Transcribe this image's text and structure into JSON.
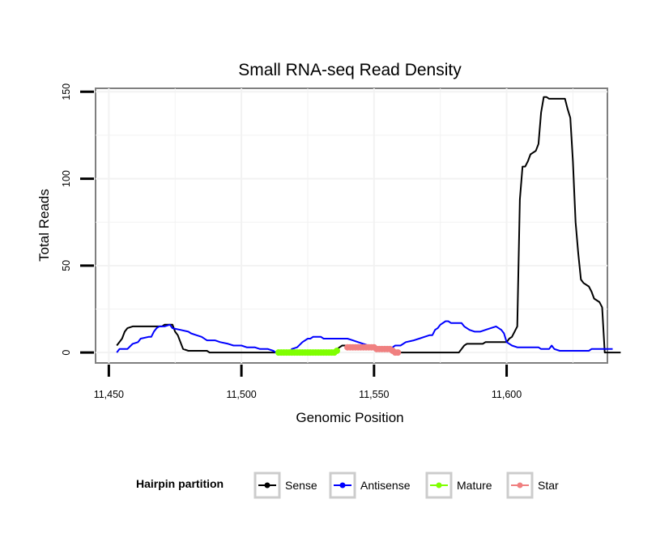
{
  "chart_data": {
    "type": "line",
    "title": "Small RNA-seq Read Density",
    "xlabel": "Genomic Position",
    "ylabel": "Total Reads",
    "xlim": [
      11445,
      11638
    ],
    "ylim": [
      -6,
      152
    ],
    "x_ticks": [
      11450,
      11500,
      11550,
      11600
    ],
    "x_tick_labels": [
      "11,450",
      "11,500",
      "11,550",
      "11,600"
    ],
    "y_ticks": [
      0,
      50,
      100,
      150
    ],
    "y_tick_labels": [
      "0",
      "50",
      "100",
      "150"
    ],
    "grid": true,
    "legend": {
      "title": "Hairpin partition",
      "position": "bottom",
      "items": [
        {
          "name": "Sense",
          "color": "#000000"
        },
        {
          "name": "Antisense",
          "color": "#0000FF"
        },
        {
          "name": "Mature",
          "color": "#7FFF00"
        },
        {
          "name": "Star",
          "color": "#F08080"
        }
      ]
    },
    "series": [
      {
        "name": "Sense",
        "color": "#000000",
        "style": "line",
        "points": [
          [
            11453,
            4
          ],
          [
            11455,
            8
          ],
          [
            11456,
            12
          ],
          [
            11457,
            14
          ],
          [
            11459,
            15
          ],
          [
            11470,
            15
          ],
          [
            11471,
            16
          ],
          [
            11474,
            16
          ],
          [
            11475,
            12
          ],
          [
            11476,
            10
          ],
          [
            11477,
            6
          ],
          [
            11478,
            2
          ],
          [
            11480,
            1
          ],
          [
            11487,
            1
          ],
          [
            11488,
            0
          ],
          [
            11513,
            0
          ],
          [
            11514,
            1
          ],
          [
            11535,
            1
          ],
          [
            11536,
            2
          ],
          [
            11537,
            3
          ],
          [
            11538,
            4
          ],
          [
            11540,
            4
          ],
          [
            11541,
            3
          ],
          [
            11548,
            3
          ],
          [
            11549,
            2
          ],
          [
            11555,
            2
          ],
          [
            11556,
            1
          ],
          [
            11557,
            0
          ],
          [
            11582,
            0
          ],
          [
            11583,
            2
          ],
          [
            11584,
            4
          ],
          [
            11585,
            5
          ],
          [
            11591,
            5
          ],
          [
            11592,
            6
          ],
          [
            11600,
            6
          ],
          [
            11601,
            8
          ],
          [
            11602,
            9
          ],
          [
            11603,
            12
          ],
          [
            11604,
            15
          ],
          [
            11605,
            88
          ],
          [
            11606,
            107
          ],
          [
            11607,
            107
          ],
          [
            11608,
            110
          ],
          [
            11609,
            114
          ],
          [
            11611,
            116
          ],
          [
            11612,
            120
          ],
          [
            11613,
            138
          ],
          [
            11614,
            147
          ],
          [
            11615,
            147
          ],
          [
            11616,
            146
          ],
          [
            11622,
            146
          ],
          [
            11623,
            140
          ],
          [
            11624,
            135
          ],
          [
            11625,
            110
          ],
          [
            11626,
            75
          ],
          [
            11627,
            57
          ],
          [
            11628,
            42
          ],
          [
            11629,
            40
          ],
          [
            11631,
            38
          ],
          [
            11632,
            35
          ],
          [
            11633,
            31
          ],
          [
            11635,
            29
          ],
          [
            11636,
            26
          ],
          [
            11637,
            0
          ],
          [
            11643,
            0
          ]
        ]
      },
      {
        "name": "Antisense",
        "color": "#0000FF",
        "style": "line",
        "points": [
          [
            11453,
            0
          ],
          [
            11454,
            2
          ],
          [
            11456,
            2
          ],
          [
            11457,
            2
          ],
          [
            11459,
            5
          ],
          [
            11461,
            6
          ],
          [
            11462,
            8
          ],
          [
            11465,
            9
          ],
          [
            11466,
            9
          ],
          [
            11467,
            12
          ],
          [
            11468,
            14
          ],
          [
            11469,
            15
          ],
          [
            11471,
            15
          ],
          [
            11473,
            16
          ],
          [
            11474,
            14
          ],
          [
            11477,
            13
          ],
          [
            11480,
            12
          ],
          [
            11481,
            11
          ],
          [
            11483,
            10
          ],
          [
            11485,
            9
          ],
          [
            11487,
            7
          ],
          [
            11490,
            7
          ],
          [
            11492,
            6
          ],
          [
            11495,
            5
          ],
          [
            11497,
            4
          ],
          [
            11500,
            4
          ],
          [
            11502,
            3
          ],
          [
            11504,
            3
          ],
          [
            11505,
            3
          ],
          [
            11507,
            2
          ],
          [
            11510,
            2
          ],
          [
            11512,
            1
          ],
          [
            11513,
            0
          ],
          [
            11518,
            0
          ],
          [
            11519,
            2
          ],
          [
            11521,
            3
          ],
          [
            11523,
            6
          ],
          [
            11525,
            8
          ],
          [
            11526,
            8
          ],
          [
            11527,
            9
          ],
          [
            11530,
            9
          ],
          [
            11531,
            8
          ],
          [
            11535,
            8
          ],
          [
            11538,
            8
          ],
          [
            11540,
            8
          ],
          [
            11542,
            7
          ],
          [
            11544,
            6
          ],
          [
            11546,
            5
          ],
          [
            11548,
            4
          ],
          [
            11550,
            3
          ],
          [
            11553,
            1
          ],
          [
            11556,
            1
          ],
          [
            11557,
            3
          ],
          [
            11558,
            4
          ],
          [
            11560,
            4
          ],
          [
            11562,
            6
          ],
          [
            11565,
            7
          ],
          [
            11567,
            8
          ],
          [
            11569,
            9
          ],
          [
            11571,
            10
          ],
          [
            11572,
            10
          ],
          [
            11573,
            13
          ],
          [
            11574,
            14
          ],
          [
            11575,
            16
          ],
          [
            11577,
            18
          ],
          [
            11578,
            18
          ],
          [
            11579,
            17
          ],
          [
            11581,
            17
          ],
          [
            11583,
            17
          ],
          [
            11584,
            15
          ],
          [
            11586,
            13
          ],
          [
            11588,
            12
          ],
          [
            11590,
            12
          ],
          [
            11592,
            13
          ],
          [
            11594,
            14
          ],
          [
            11596,
            15
          ],
          [
            11598,
            13
          ],
          [
            11599,
            11
          ],
          [
            11600,
            6
          ],
          [
            11602,
            4
          ],
          [
            11604,
            3
          ],
          [
            11612,
            3
          ],
          [
            11613,
            2
          ],
          [
            11616,
            2
          ],
          [
            11617,
            4
          ],
          [
            11618,
            2
          ],
          [
            11620,
            1
          ],
          [
            11631,
            1
          ],
          [
            11632,
            2
          ],
          [
            11640,
            2
          ]
        ]
      },
      {
        "name": "Mature",
        "color": "#7FFF00",
        "style": "dots",
        "points": [
          [
            11514,
            0
          ],
          [
            11515,
            0
          ],
          [
            11516,
            0
          ],
          [
            11517,
            0
          ],
          [
            11518,
            0
          ],
          [
            11519,
            0
          ],
          [
            11520,
            0
          ],
          [
            11521,
            0
          ],
          [
            11522,
            0
          ],
          [
            11523,
            0
          ],
          [
            11524,
            0
          ],
          [
            11525,
            0
          ],
          [
            11526,
            0
          ],
          [
            11527,
            0
          ],
          [
            11528,
            0
          ],
          [
            11529,
            0
          ],
          [
            11530,
            0
          ],
          [
            11531,
            0
          ],
          [
            11532,
            0
          ],
          [
            11533,
            0
          ],
          [
            11534,
            0
          ],
          [
            11535,
            0
          ],
          [
            11536,
            1
          ]
        ]
      },
      {
        "name": "Star",
        "color": "#F08080",
        "style": "dots",
        "points": [
          [
            11540,
            3
          ],
          [
            11541,
            3
          ],
          [
            11542,
            3
          ],
          [
            11543,
            3
          ],
          [
            11544,
            3
          ],
          [
            11545,
            3
          ],
          [
            11546,
            3
          ],
          [
            11547,
            3
          ],
          [
            11548,
            3
          ],
          [
            11549,
            3
          ],
          [
            11550,
            3
          ],
          [
            11551,
            2
          ],
          [
            11552,
            2
          ],
          [
            11553,
            2
          ],
          [
            11554,
            2
          ],
          [
            11555,
            2
          ],
          [
            11556,
            2
          ],
          [
            11557,
            1
          ],
          [
            11558,
            0
          ],
          [
            11559,
            0
          ]
        ]
      }
    ]
  }
}
